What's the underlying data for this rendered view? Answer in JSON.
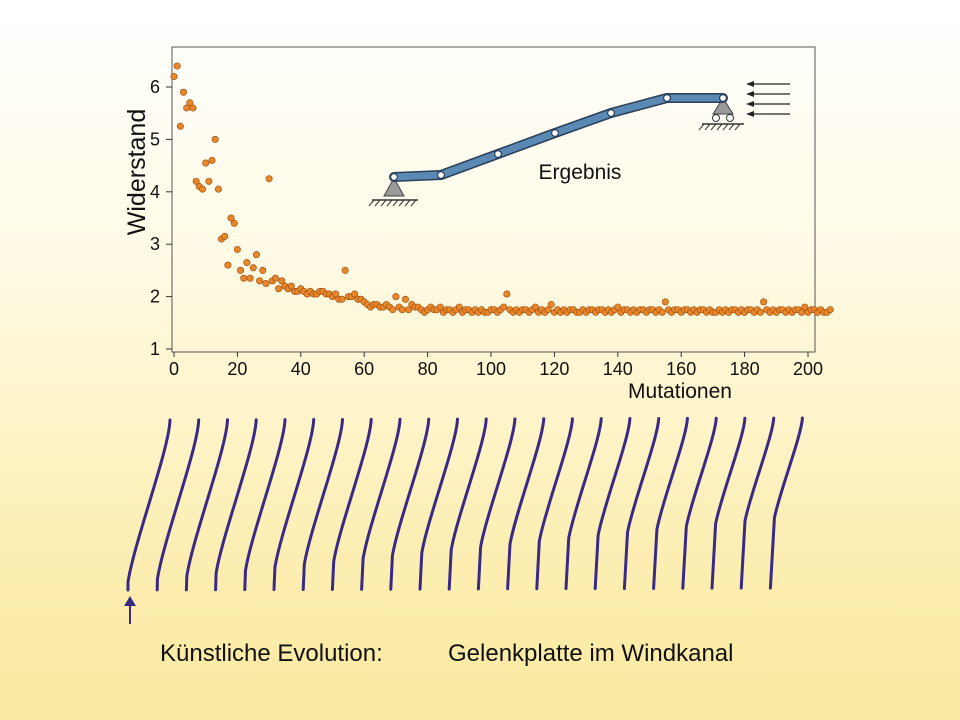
{
  "chart_data": {
    "type": "scatter",
    "xlabel": "Mutationen",
    "ylabel": "Widerstand",
    "xlim": [
      0,
      200
    ],
    "ylim": [
      1,
      6.7
    ],
    "xticks": [
      0,
      20,
      40,
      60,
      80,
      100,
      120,
      140,
      160,
      180,
      200
    ],
    "yticks": [
      1,
      2,
      3,
      4,
      5,
      6
    ],
    "grid": false,
    "marker_color": "#e8862a",
    "points_x_step": 1,
    "y": [
      6.2,
      6.4,
      5.25,
      5.9,
      5.6,
      5.7,
      5.6,
      4.2,
      4.1,
      4.05,
      4.55,
      4.2,
      4.6,
      5.0,
      4.05,
      3.1,
      3.15,
      2.6,
      3.5,
      3.4,
      2.9,
      2.5,
      2.35,
      2.65,
      2.35,
      2.55,
      2.8,
      2.3,
      2.5,
      2.25,
      4.25,
      2.3,
      2.35,
      2.15,
      2.3,
      2.2,
      2.15,
      2.2,
      2.1,
      2.1,
      2.15,
      2.1,
      2.05,
      2.1,
      2.05,
      2.05,
      2.1,
      2.1,
      2.05,
      2.05,
      2.0,
      2.05,
      1.95,
      1.95,
      2.5,
      2.0,
      2.0,
      2.05,
      1.95,
      1.95,
      1.9,
      1.85,
      1.8,
      1.85,
      1.85,
      1.8,
      1.8,
      1.85,
      1.8,
      1.75,
      2.0,
      1.8,
      1.75,
      1.95,
      1.75,
      1.85,
      1.8,
      1.8,
      1.75,
      1.7,
      1.75,
      1.8,
      1.75,
      1.75,
      1.8,
      1.7,
      1.75,
      1.75,
      1.7,
      1.75,
      1.8,
      1.7,
      1.75,
      1.75,
      1.7,
      1.75,
      1.7,
      1.75,
      1.7,
      1.7,
      1.75,
      1.75,
      1.7,
      1.75,
      1.8,
      2.05,
      1.75,
      1.7,
      1.75,
      1.7,
      1.75,
      1.75,
      1.7,
      1.75,
      1.8,
      1.7,
      1.75,
      1.7,
      1.75,
      1.85,
      1.7,
      1.75,
      1.7,
      1.75,
      1.7,
      1.75,
      1.75,
      1.7,
      1.7,
      1.75,
      1.7,
      1.75,
      1.75,
      1.7,
      1.75,
      1.75,
      1.7,
      1.75,
      1.7,
      1.75,
      1.8,
      1.7,
      1.75,
      1.75,
      1.7,
      1.75,
      1.7,
      1.75,
      1.75,
      1.7,
      1.75,
      1.75,
      1.7,
      1.75,
      1.7,
      1.9,
      1.75,
      1.7,
      1.75,
      1.75,
      1.7,
      1.75,
      1.75,
      1.7,
      1.75,
      1.7,
      1.75,
      1.75,
      1.7,
      1.75,
      1.7,
      1.7,
      1.75,
      1.7,
      1.75,
      1.7,
      1.75,
      1.75,
      1.7,
      1.75,
      1.7,
      1.75,
      1.75,
      1.7,
      1.75,
      1.7,
      1.9,
      1.75,
      1.7,
      1.75,
      1.7,
      1.75,
      1.75,
      1.7,
      1.75,
      1.7,
      1.75,
      1.75,
      1.7,
      1.8,
      1.7,
      1.75,
      1.75,
      1.7,
      1.75,
      1.7,
      1.7,
      1.75
    ]
  },
  "inset": {
    "label": "Ergebnis",
    "plate_color": "#5a8ab3",
    "wind_arrow_count": 4
  },
  "evolution_strip": {
    "stroke_color": "#3a2a86",
    "count": 23
  },
  "caption": {
    "left": "Künstliche Evolution:",
    "right": "Gelenkplatte im Windkanal"
  }
}
